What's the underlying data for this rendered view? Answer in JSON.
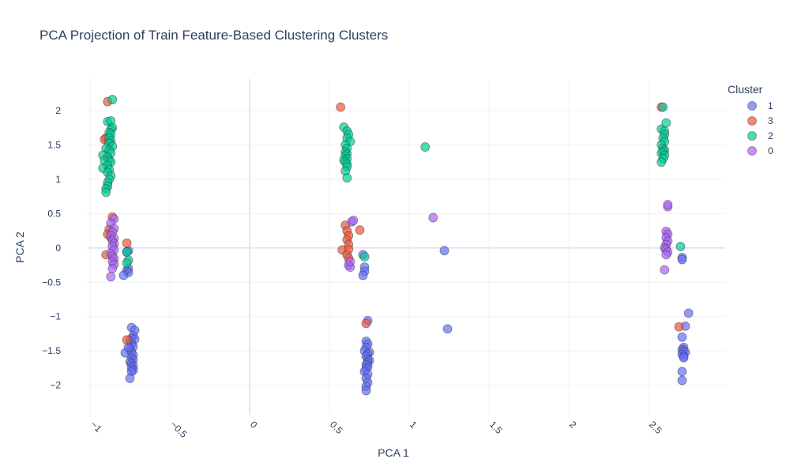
{
  "chart_data": {
    "type": "scatter",
    "title": "PCA Projection of Train Feature-Based Clustering Clusters",
    "xlabel": "PCA 1",
    "ylabel": "PCA 2",
    "xlim": [
      -1.02,
      2.98
    ],
    "ylim": [
      -2.43,
      2.46
    ],
    "x_ticks": [
      -1,
      -0.5,
      0,
      0.5,
      1,
      1.5,
      2,
      2.5
    ],
    "y_ticks": [
      -2,
      -1.5,
      -1,
      -0.5,
      0,
      0.5,
      1,
      1.5,
      2
    ],
    "x_tick_labels": [
      "−1",
      "−0.5",
      "0",
      "0.5",
      "1",
      "1.5",
      "2",
      "2.5"
    ],
    "y_tick_labels": [
      "−2",
      "−1.5",
      "−1",
      "−0.5",
      "0",
      "0.5",
      "1",
      "1.5",
      "2"
    ],
    "grid": true,
    "legend": {
      "title": "Cluster",
      "placement": "top-right"
    },
    "series": [
      {
        "name": "1",
        "color": "#636efa",
        "points": [
          [
            -0.74,
            -1.16
          ],
          [
            -0.72,
            -1.2
          ],
          [
            -0.73,
            -1.28
          ],
          [
            -0.74,
            -1.32
          ],
          [
            -0.75,
            -1.36
          ],
          [
            -0.72,
            -1.33
          ],
          [
            -0.74,
            -1.4
          ],
          [
            -0.73,
            -1.44
          ],
          [
            -0.75,
            -1.48
          ],
          [
            -0.78,
            -1.53
          ],
          [
            -0.74,
            -1.52
          ],
          [
            -0.73,
            -1.56
          ],
          [
            -0.74,
            -1.6
          ],
          [
            -0.73,
            -1.63
          ],
          [
            -0.75,
            -1.66
          ],
          [
            -0.74,
            -1.69
          ],
          [
            -0.73,
            -1.72
          ],
          [
            -0.74,
            -1.75
          ],
          [
            -0.73,
            -1.78
          ],
          [
            -0.74,
            -1.8
          ],
          [
            -0.75,
            -1.9
          ],
          [
            -0.76,
            -1.45
          ],
          [
            -0.76,
            -0.04
          ],
          [
            -0.77,
            -0.06
          ],
          [
            -0.76,
            -0.3
          ],
          [
            -0.77,
            -0.33
          ],
          [
            -0.76,
            -0.36
          ],
          [
            -0.79,
            -0.4
          ],
          [
            0.74,
            -1.06
          ],
          [
            0.73,
            -1.36
          ],
          [
            0.74,
            -1.4
          ],
          [
            0.73,
            -1.45
          ],
          [
            0.72,
            -1.5
          ],
          [
            0.75,
            -1.52
          ],
          [
            0.74,
            -1.55
          ],
          [
            0.73,
            -1.58
          ],
          [
            0.74,
            -1.62
          ],
          [
            0.75,
            -1.64
          ],
          [
            0.74,
            -1.67
          ],
          [
            0.73,
            -1.7
          ],
          [
            0.74,
            -1.73
          ],
          [
            0.73,
            -1.76
          ],
          [
            0.72,
            -1.8
          ],
          [
            0.74,
            -1.84
          ],
          [
            0.73,
            -1.9
          ],
          [
            0.74,
            -1.96
          ],
          [
            0.73,
            -2.02
          ],
          [
            0.73,
            -2.08
          ],
          [
            0.71,
            -0.1
          ],
          [
            0.72,
            -0.28
          ],
          [
            0.72,
            -0.34
          ],
          [
            0.71,
            -0.4
          ],
          [
            1.22,
            -0.04
          ],
          [
            1.24,
            -1.18
          ],
          [
            2.75,
            -0.95
          ],
          [
            2.73,
            -1.14
          ],
          [
            2.71,
            -1.3
          ],
          [
            2.72,
            -1.45
          ],
          [
            2.71,
            -1.48
          ],
          [
            2.72,
            -1.5
          ],
          [
            2.73,
            -1.52
          ],
          [
            2.71,
            -1.55
          ],
          [
            2.72,
            -1.58
          ],
          [
            2.72,
            -1.6
          ],
          [
            2.71,
            -1.8
          ],
          [
            2.71,
            -1.93
          ],
          [
            2.71,
            -0.14
          ],
          [
            2.71,
            -0.17
          ]
        ]
      },
      {
        "name": "3",
        "color": "#EF553B",
        "points": [
          [
            -0.89,
            2.13
          ],
          [
            -0.9,
            1.6
          ],
          [
            -0.91,
            1.58
          ],
          [
            -0.88,
            1.55
          ],
          [
            -0.86,
            0.45
          ],
          [
            -0.88,
            0.27
          ],
          [
            -0.89,
            0.2
          ],
          [
            -0.87,
            0.15
          ],
          [
            -0.9,
            -0.1
          ],
          [
            -0.77,
            0.07
          ],
          [
            -0.77,
            -1.34
          ],
          [
            0.57,
            2.05
          ],
          [
            0.58,
            -0.03
          ],
          [
            0.6,
            0.33
          ],
          [
            0.61,
            0.25
          ],
          [
            0.62,
            0.18
          ],
          [
            0.61,
            0.12
          ],
          [
            0.62,
            0.05
          ],
          [
            0.62,
            -0.02
          ],
          [
            0.61,
            -0.1
          ],
          [
            0.62,
            -0.15
          ],
          [
            0.69,
            0.26
          ],
          [
            0.73,
            -1.1
          ],
          [
            2.58,
            2.05
          ],
          [
            2.69,
            -1.15
          ]
        ]
      },
      {
        "name": "2",
        "color": "#00cc96",
        "points": [
          [
            -0.86,
            2.16
          ],
          [
            -0.89,
            1.84
          ],
          [
            -0.87,
            1.85
          ],
          [
            -0.86,
            1.75
          ],
          [
            -0.87,
            1.72
          ],
          [
            -0.88,
            1.68
          ],
          [
            -0.87,
            1.65
          ],
          [
            -0.88,
            1.6
          ],
          [
            -0.87,
            1.56
          ],
          [
            -0.88,
            1.52
          ],
          [
            -0.86,
            1.48
          ],
          [
            -0.9,
            1.45
          ],
          [
            -0.88,
            1.42
          ],
          [
            -0.92,
            1.35
          ],
          [
            -0.87,
            1.38
          ],
          [
            -0.89,
            1.32
          ],
          [
            -0.88,
            1.28
          ],
          [
            -0.91,
            1.27
          ],
          [
            -0.87,
            1.25
          ],
          [
            -0.89,
            1.2
          ],
          [
            -0.92,
            1.16
          ],
          [
            -0.88,
            1.14
          ],
          [
            -0.89,
            1.1
          ],
          [
            -0.87,
            1.05
          ],
          [
            -0.88,
            1.0
          ],
          [
            -0.89,
            0.95
          ],
          [
            -0.89,
            0.9
          ],
          [
            -0.9,
            0.86
          ],
          [
            -0.9,
            0.81
          ],
          [
            -0.77,
            -0.06
          ],
          [
            -0.76,
            -0.18
          ],
          [
            -0.77,
            -0.22
          ],
          [
            0.59,
            1.76
          ],
          [
            0.61,
            1.7
          ],
          [
            0.62,
            1.65
          ],
          [
            0.61,
            1.6
          ],
          [
            0.63,
            1.55
          ],
          [
            0.6,
            1.5
          ],
          [
            0.61,
            1.45
          ],
          [
            0.6,
            1.4
          ],
          [
            0.61,
            1.37
          ],
          [
            0.6,
            1.34
          ],
          [
            0.61,
            1.3
          ],
          [
            0.59,
            1.28
          ],
          [
            0.6,
            1.25
          ],
          [
            0.61,
            1.22
          ],
          [
            0.61,
            1.18
          ],
          [
            0.6,
            1.12
          ],
          [
            0.61,
            1.02
          ],
          [
            0.72,
            -0.13
          ],
          [
            1.1,
            1.47
          ],
          [
            2.59,
            2.05
          ],
          [
            2.58,
            1.73
          ],
          [
            2.6,
            1.7
          ],
          [
            2.61,
            1.82
          ],
          [
            2.6,
            1.65
          ],
          [
            2.59,
            1.6
          ],
          [
            2.6,
            1.55
          ],
          [
            2.58,
            1.5
          ],
          [
            2.59,
            1.45
          ],
          [
            2.6,
            1.42
          ],
          [
            2.59,
            1.4
          ],
          [
            2.58,
            1.38
          ],
          [
            2.6,
            1.35
          ],
          [
            2.59,
            1.3
          ],
          [
            2.58,
            1.25
          ],
          [
            2.7,
            0.02
          ]
        ]
      },
      {
        "name": "0",
        "color": "#ab63fa",
        "points": [
          [
            -0.85,
            0.42
          ],
          [
            -0.87,
            0.36
          ],
          [
            -0.85,
            0.28
          ],
          [
            -0.86,
            0.23
          ],
          [
            -0.87,
            0.18
          ],
          [
            -0.85,
            0.14
          ],
          [
            -0.86,
            0.1
          ],
          [
            -0.85,
            0.06
          ],
          [
            -0.86,
            0.02
          ],
          [
            -0.85,
            -0.03
          ],
          [
            -0.87,
            -0.08
          ],
          [
            -0.86,
            -0.12
          ],
          [
            -0.85,
            -0.16
          ],
          [
            -0.86,
            -0.2
          ],
          [
            -0.85,
            -0.24
          ],
          [
            -0.86,
            -0.3
          ],
          [
            -0.87,
            -0.42
          ],
          [
            0.64,
            0.38
          ],
          [
            0.65,
            0.4
          ],
          [
            0.62,
            -0.25
          ],
          [
            0.63,
            -0.28
          ],
          [
            0.63,
            -0.2
          ],
          [
            1.15,
            0.44
          ],
          [
            2.62,
            0.6
          ],
          [
            2.62,
            0.63
          ],
          [
            2.61,
            0.24
          ],
          [
            2.62,
            0.2
          ],
          [
            2.61,
            0.15
          ],
          [
            2.62,
            0.1
          ],
          [
            2.61,
            0.05
          ],
          [
            2.6,
            0.0
          ],
          [
            2.61,
            -0.02
          ],
          [
            2.62,
            -0.06
          ],
          [
            2.61,
            -0.1
          ],
          [
            2.6,
            -0.32
          ]
        ]
      }
    ]
  }
}
